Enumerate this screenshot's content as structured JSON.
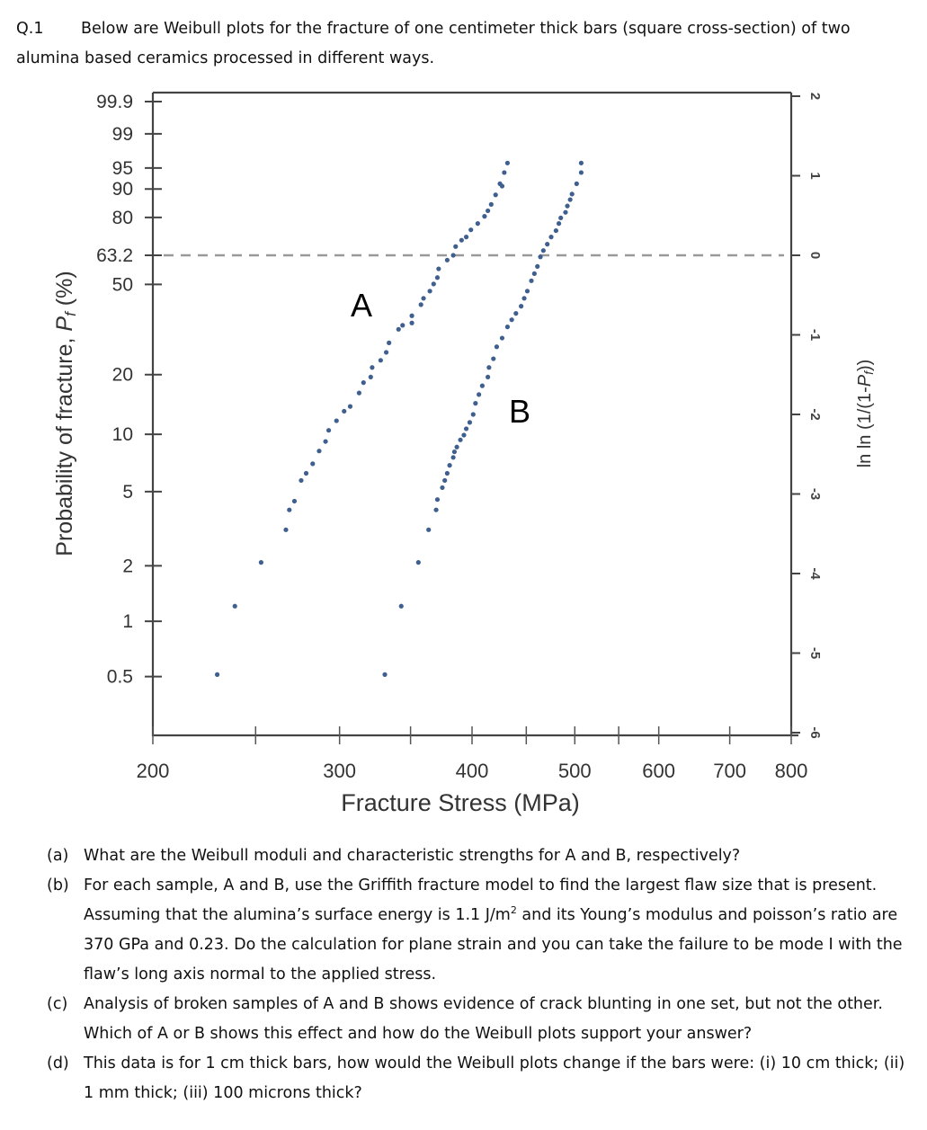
{
  "question": {
    "number": "Q.1",
    "intro": "Below are Weibull plots for the fracture of one centimeter thick bars (square cross-section) of two alumina based ceramics processed in different ways."
  },
  "chart_data": {
    "type": "scatter",
    "title": "",
    "xlabel": "Fracture Stress (MPa)",
    "ylabel_left": "Probability of fracture, Pf (%)",
    "ylabel_right": "ln ln (1/(1-Pf))",
    "x_scale": "log",
    "xlim": [
      200,
      800
    ],
    "x_ticks": [
      200,
      250,
      300,
      350,
      400,
      450,
      500,
      550,
      600,
      700,
      800
    ],
    "x_tick_labels": [
      "200",
      "300",
      "400",
      "500",
      "600",
      "700",
      "800"
    ],
    "ylim_lnln": [
      -6,
      2
    ],
    "left_ticks_percent": [
      "99.9",
      "99",
      "95",
      "90",
      "80",
      "63.2",
      "50",
      "20",
      "10",
      "5",
      "2",
      "1",
      "0.5"
    ],
    "right_tick_labels": [
      "2",
      "1",
      "0",
      "-1",
      "-2",
      "-3",
      "-4",
      "-5",
      "-6"
    ],
    "reference_line": {
      "label_percent": "63.2",
      "lnln": 0,
      "style": "dashed"
    },
    "grid": false,
    "marker_color": "#3f5f8f",
    "series": [
      {
        "name": "A",
        "x": [
          230,
          239,
          253,
          267,
          269,
          272,
          276,
          279,
          283,
          287,
          291,
          293,
          298,
          303,
          307,
          313,
          316,
          321,
          322,
          328,
          332,
          334,
          341,
          344,
          351,
          351,
          358,
          360,
          365,
          368,
          371,
          372,
          379,
          384,
          386,
          391,
          395,
          399,
          405,
          411,
          414,
          417,
          421,
          425,
          427,
          429,
          432
        ],
        "y": [
          -5.27,
          -4.41,
          -3.86,
          -3.45,
          -3.2,
          -3.09,
          -2.83,
          -2.74,
          -2.62,
          -2.46,
          -2.34,
          -2.2,
          -2.08,
          -1.96,
          -1.9,
          -1.73,
          -1.6,
          -1.53,
          -1.41,
          -1.32,
          -1.22,
          -1.1,
          -0.93,
          -0.88,
          -0.85,
          -0.76,
          -0.62,
          -0.54,
          -0.45,
          -0.36,
          -0.28,
          -0.17,
          -0.06,
          0.0,
          0.11,
          0.19,
          0.23,
          0.32,
          0.4,
          0.49,
          0.56,
          0.64,
          0.76,
          0.9,
          0.87,
          1.04,
          1.16
        ]
      },
      {
        "name": "B",
        "x": [
          331,
          343,
          356,
          364,
          370,
          371,
          375,
          377,
          379,
          381,
          384,
          385,
          387,
          390,
          393,
          395,
          398,
          401,
          403,
          406,
          409,
          414,
          415,
          419,
          422,
          427,
          432,
          436,
          440,
          445,
          448,
          451,
          455,
          458,
          461,
          464,
          467,
          471,
          475,
          480,
          483,
          485,
          490,
          492,
          495,
          497,
          502,
          507,
          507
        ],
        "y": [
          -5.27,
          -4.41,
          -3.86,
          -3.45,
          -3.2,
          -3.07,
          -2.92,
          -2.83,
          -2.74,
          -2.64,
          -2.54,
          -2.47,
          -2.41,
          -2.32,
          -2.26,
          -2.18,
          -2.1,
          -2.0,
          -1.86,
          -1.75,
          -1.64,
          -1.53,
          -1.41,
          -1.3,
          -1.15,
          -1.04,
          -0.9,
          -0.81,
          -0.73,
          -0.64,
          -0.54,
          -0.45,
          -0.32,
          -0.23,
          -0.14,
          -0.02,
          0.06,
          0.14,
          0.23,
          0.31,
          0.4,
          0.47,
          0.54,
          0.62,
          0.7,
          0.77,
          0.9,
          1.04,
          1.16
        ]
      }
    ]
  },
  "parts": [
    {
      "label": "(a)",
      "text": "What are the Weibull moduli and characteristic strengths for A and B, respectively?"
    },
    {
      "label": "(b)",
      "text_before_sup": "For each sample, A and B, use the Griffith fracture model to find the largest flaw size that is present. Assuming that the alumina’s surface energy is 1.1 J/m",
      "sup": "2",
      "text_after_sup": " and its Young’s modulus and poisson’s ratio are 370 GPa and 0.23. Do the calculation for plane strain and you can take the failure to be mode I with the flaw’s long axis normal to the applied stress."
    },
    {
      "label": "(c)",
      "text": "Analysis of broken samples of A and B shows evidence of crack blunting in one set, but not the other. Which of A or B shows this effect and how do the Weibull plots support your answer?"
    },
    {
      "label": "(d)",
      "text": "This data is for 1 cm thick bars, how would the Weibull plots change if the bars were: (i) 10 cm thick; (ii) 1 mm thick; (iii) 100 microns thick?"
    }
  ]
}
